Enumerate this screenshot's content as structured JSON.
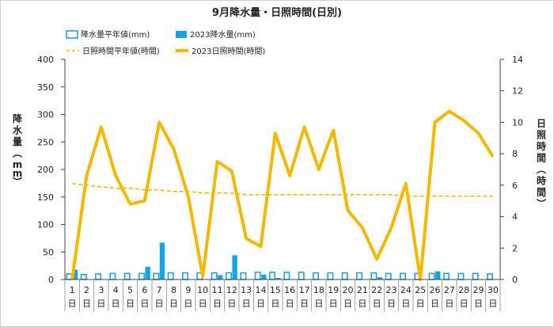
{
  "chart_data": {
    "type": "bar+line",
    "title": "9月降水量・日照時間(日別)",
    "categories": [
      "1",
      "2",
      "3",
      "4",
      "5",
      "6",
      "7",
      "8",
      "9",
      "10",
      "11",
      "12",
      "13",
      "14",
      "15",
      "16",
      "17",
      "18",
      "19",
      "20",
      "21",
      "22",
      "23",
      "24",
      "25",
      "26",
      "27",
      "28",
      "29",
      "30"
    ],
    "category_suffix": "日",
    "y_left": {
      "label": "降水量(mm)",
      "ticks": [
        "0",
        "50",
        "100",
        "150",
        "200",
        "250",
        "300",
        "350",
        "400"
      ],
      "min": 0,
      "max": 400
    },
    "y_right": {
      "label": "日照時間(時間)",
      "ticks": [
        "0",
        "2",
        "4",
        "6",
        "8",
        "10",
        "12",
        "14"
      ],
      "min": 0,
      "max": 14
    },
    "series": [
      {
        "name": "降水量平年値(mm)",
        "type": "bar",
        "axis": "left",
        "color": "#1aa3e0",
        "values": [
          10,
          9,
          10,
          11,
          11,
          11,
          11,
          12,
          12,
          12,
          12,
          12,
          12,
          13,
          13,
          13,
          13,
          12,
          12,
          12,
          12,
          12,
          11,
          11,
          11,
          11,
          11,
          11,
          11,
          10
        ]
      },
      {
        "name": "2023降水量(mm)",
        "type": "bar",
        "axis": "left",
        "color": "#1aa3e0",
        "values": [
          18,
          0,
          0,
          0,
          0,
          23,
          67,
          0,
          0,
          0,
          8,
          44,
          0,
          9,
          3,
          0,
          0,
          0,
          0,
          0,
          0,
          4,
          0,
          0,
          0,
          15,
          0,
          0,
          0,
          0
        ]
      },
      {
        "name": "日照時間平年値(時間)",
        "type": "line",
        "axis": "right",
        "color": "#f5b800",
        "dashed": true,
        "values": [
          6.1,
          6.0,
          5.9,
          5.8,
          5.8,
          5.7,
          5.7,
          5.6,
          5.6,
          5.5,
          5.5,
          5.5,
          5.4,
          5.4,
          5.4,
          5.4,
          5.4,
          5.4,
          5.4,
          5.4,
          5.4,
          5.4,
          5.4,
          5.3,
          5.3,
          5.3,
          5.3,
          5.3,
          5.3,
          5.3
        ]
      },
      {
        "name": "2023日照時間(時間)",
        "type": "line",
        "axis": "right",
        "color": "#f5b800",
        "values": [
          0,
          6.6,
          9.7,
          6.6,
          4.8,
          5.0,
          10.0,
          8.3,
          5.3,
          0.2,
          7.5,
          6.9,
          2.6,
          2.1,
          9.3,
          6.6,
          9.7,
          7.0,
          9.5,
          4.4,
          3.3,
          1.3,
          3.3,
          6.1,
          0,
          10.0,
          10.7,
          10.1,
          9.3,
          7.8
        ]
      }
    ],
    "legend_position": "top"
  }
}
